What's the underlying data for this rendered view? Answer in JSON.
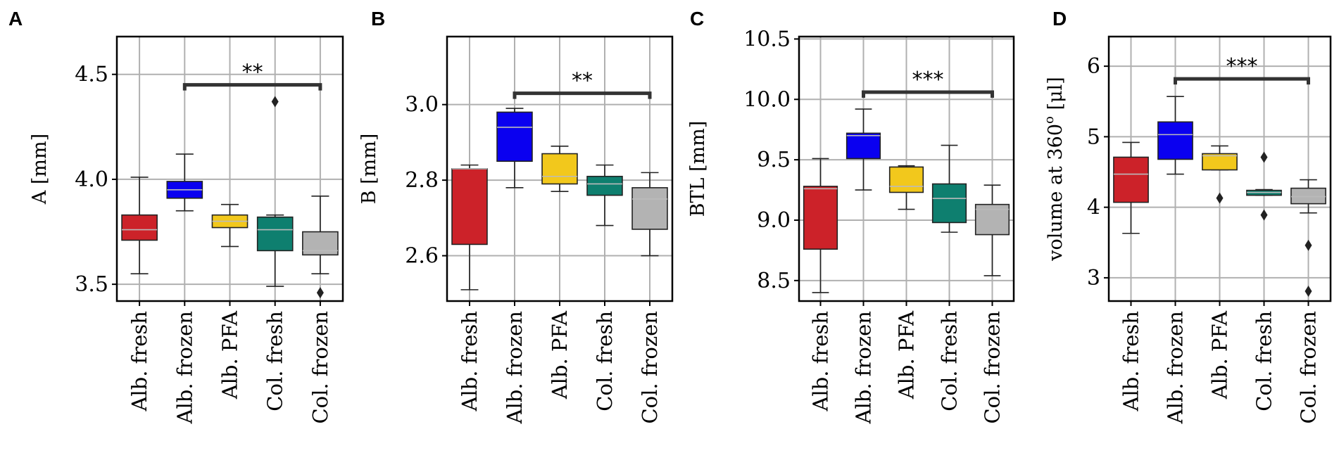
{
  "chart_data": [
    {
      "id": "A",
      "panel_label": "A",
      "type": "box",
      "ylabel": "A [mm]",
      "ylim": [
        3.42,
        4.68
      ],
      "yticks": [
        3.5,
        4.0,
        4.5
      ],
      "ytick_labels": [
        "3.5",
        "4.0",
        "4.5"
      ],
      "categories": [
        "Alb. fresh",
        "Alb. frozen",
        "Alb. PFA",
        "Col. fresh",
        "Col. frozen"
      ],
      "colors": [
        "#cc2229",
        "#0a00f0",
        "#f2c81c",
        "#0e7f6f",
        "#b3b3b3"
      ],
      "boxes": [
        {
          "q1": 3.71,
          "median": 3.76,
          "q3": 3.83,
          "whisker_low": 3.55,
          "whisker_high": 4.01,
          "outliers": []
        },
        {
          "q1": 3.91,
          "median": 3.95,
          "q3": 3.99,
          "whisker_low": 3.85,
          "whisker_high": 4.12,
          "outliers": []
        },
        {
          "q1": 3.77,
          "median": 3.8,
          "q3": 3.83,
          "whisker_low": 3.68,
          "whisker_high": 3.88,
          "outliers": []
        },
        {
          "q1": 3.66,
          "median": 3.76,
          "q3": 3.82,
          "whisker_low": 3.49,
          "whisker_high": 3.83,
          "outliers": [
            4.37
          ]
        },
        {
          "q1": 3.64,
          "median": 3.66,
          "q3": 3.75,
          "whisker_low": 3.55,
          "whisker_high": 3.92,
          "outliers": [
            3.46
          ]
        }
      ],
      "significance": {
        "from": 1,
        "to": 4,
        "y": 4.45,
        "label": "**"
      }
    },
    {
      "id": "B",
      "panel_label": "B",
      "type": "box",
      "ylabel": "B [mm]",
      "ylim": [
        2.48,
        3.18
      ],
      "yticks": [
        2.6,
        2.8,
        3.0
      ],
      "ytick_labels": [
        "2.6",
        "2.8",
        "3.0"
      ],
      "categories": [
        "Alb. fresh",
        "Alb. frozen",
        "Alb. PFA",
        "Col. fresh",
        "Col. frozen"
      ],
      "colors": [
        "#cc2229",
        "#0a00f0",
        "#f2c81c",
        "#0e7f6f",
        "#b3b3b3"
      ],
      "boxes": [
        {
          "q1": 2.63,
          "median": 2.83,
          "q3": 2.83,
          "whisker_low": 2.51,
          "whisker_high": 2.84,
          "outliers": []
        },
        {
          "q1": 2.85,
          "median": 2.94,
          "q3": 2.98,
          "whisker_low": 2.78,
          "whisker_high": 2.99,
          "outliers": []
        },
        {
          "q1": 2.79,
          "median": 2.81,
          "q3": 2.87,
          "whisker_low": 2.77,
          "whisker_high": 2.89,
          "outliers": []
        },
        {
          "q1": 2.76,
          "median": 2.79,
          "q3": 2.81,
          "whisker_low": 2.68,
          "whisker_high": 2.84,
          "outliers": []
        },
        {
          "q1": 2.67,
          "median": 2.75,
          "q3": 2.78,
          "whisker_low": 2.6,
          "whisker_high": 2.82,
          "outliers": []
        }
      ],
      "significance": {
        "from": 1,
        "to": 4,
        "y": 3.03,
        "label": "**"
      }
    },
    {
      "id": "C",
      "panel_label": "C",
      "type": "box",
      "ylabel": "BTL [mm]",
      "ylim": [
        8.33,
        10.52
      ],
      "yticks": [
        8.5,
        9.0,
        9.5,
        10.0,
        10.5
      ],
      "ytick_labels": [
        "8.5",
        "9.0",
        "9.5",
        "10.0",
        "10.5"
      ],
      "categories": [
        "Alb. fresh",
        "Alb. frozen",
        "Alb. PFA",
        "Col. fresh",
        "Col. frozen"
      ],
      "colors": [
        "#cc2229",
        "#0a00f0",
        "#f2c81c",
        "#0e7f6f",
        "#b3b3b3"
      ],
      "boxes": [
        {
          "q1": 8.76,
          "median": 9.26,
          "q3": 9.28,
          "whisker_low": 8.4,
          "whisker_high": 9.51,
          "outliers": []
        },
        {
          "q1": 9.51,
          "median": 9.7,
          "q3": 9.72,
          "whisker_low": 9.25,
          "whisker_high": 9.92,
          "outliers": []
        },
        {
          "q1": 9.23,
          "median": 9.28,
          "q3": 9.44,
          "whisker_low": 9.09,
          "whisker_high": 9.45,
          "outliers": []
        },
        {
          "q1": 8.98,
          "median": 9.18,
          "q3": 9.3,
          "whisker_low": 8.9,
          "whisker_high": 9.62,
          "outliers": []
        },
        {
          "q1": 8.88,
          "median": 9.09,
          "q3": 9.13,
          "whisker_low": 8.54,
          "whisker_high": 9.29,
          "outliers": []
        }
      ],
      "significance": {
        "from": 1,
        "to": 4,
        "y": 10.06,
        "label": "***"
      }
    },
    {
      "id": "D",
      "panel_label": "D",
      "type": "box",
      "ylabel": "volume at 360",
      "ylabel_superscript": "o",
      "ylabel_unit": " [μl]",
      "ylim": [
        2.67,
        6.42
      ],
      "yticks": [
        3,
        4,
        5,
        6
      ],
      "ytick_labels": [
        "3",
        "4",
        "5",
        "6"
      ],
      "categories": [
        "Alb. fresh",
        "Alb. frozen",
        "Alb. PFA",
        "Col. fresh",
        "Col. frozen"
      ],
      "colors": [
        "#cc2229",
        "#0a00f0",
        "#f2c81c",
        "#0e7f6f",
        "#b3b3b3"
      ],
      "boxes": [
        {
          "q1": 4.07,
          "median": 4.47,
          "q3": 4.71,
          "whisker_low": 3.63,
          "whisker_high": 4.92,
          "outliers": []
        },
        {
          "q1": 4.68,
          "median": 5.03,
          "q3": 5.21,
          "whisker_low": 4.47,
          "whisker_high": 5.57,
          "outliers": []
        },
        {
          "q1": 4.53,
          "median": 4.73,
          "q3": 4.76,
          "whisker_low": 4.53,
          "whisker_high": 4.87,
          "outliers": [
            4.13
          ]
        },
        {
          "q1": 4.17,
          "median": 4.21,
          "q3": 4.24,
          "whisker_low": 4.17,
          "whisker_high": 4.25,
          "outliers": [
            4.71,
            3.89
          ]
        },
        {
          "q1": 4.05,
          "median": 4.15,
          "q3": 4.27,
          "whisker_low": 3.92,
          "whisker_high": 4.39,
          "outliers": [
            3.46,
            2.81
          ]
        }
      ],
      "significance": {
        "from": 1,
        "to": 4,
        "y": 5.82,
        "label": "***"
      }
    }
  ]
}
